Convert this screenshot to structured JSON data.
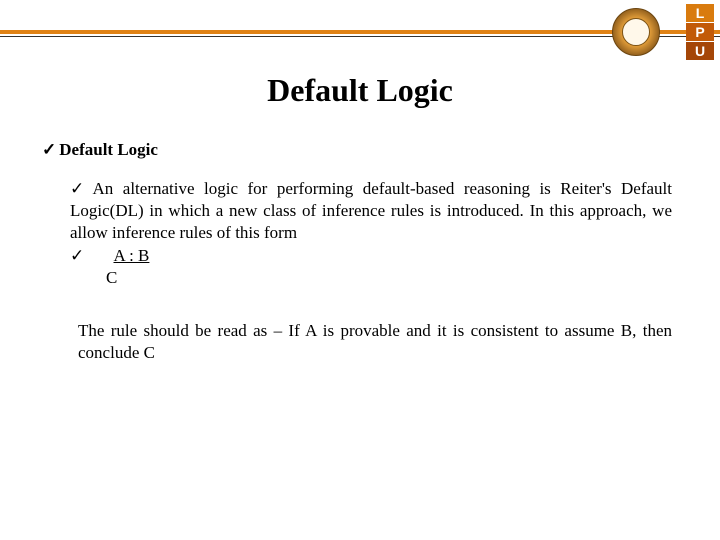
{
  "header": {
    "bar_color": "#e08214",
    "thin_bar_color": "#333333"
  },
  "logos": {
    "lpu_letters": {
      "l": "L",
      "p": "P",
      "u": "U"
    }
  },
  "slide": {
    "title": "Default Logic",
    "section_heading": "Default Logic",
    "paragraph1": "An alternative logic for performing default-based reasoning is Reiter's Default Logic(DL) in which a new class of inference rules is introduced. In this approach, we allow inference rules of this form",
    "formula": {
      "numerator": "A : B",
      "denominator": "C"
    },
    "paragraph2": "The rule should be read as – If A is provable and it is consistent to assume B, then conclude C"
  },
  "style": {
    "title_fontsize": 32,
    "body_fontsize": 17,
    "text_color": "#000000",
    "background_color": "#ffffff",
    "font_family": "Times New Roman"
  }
}
